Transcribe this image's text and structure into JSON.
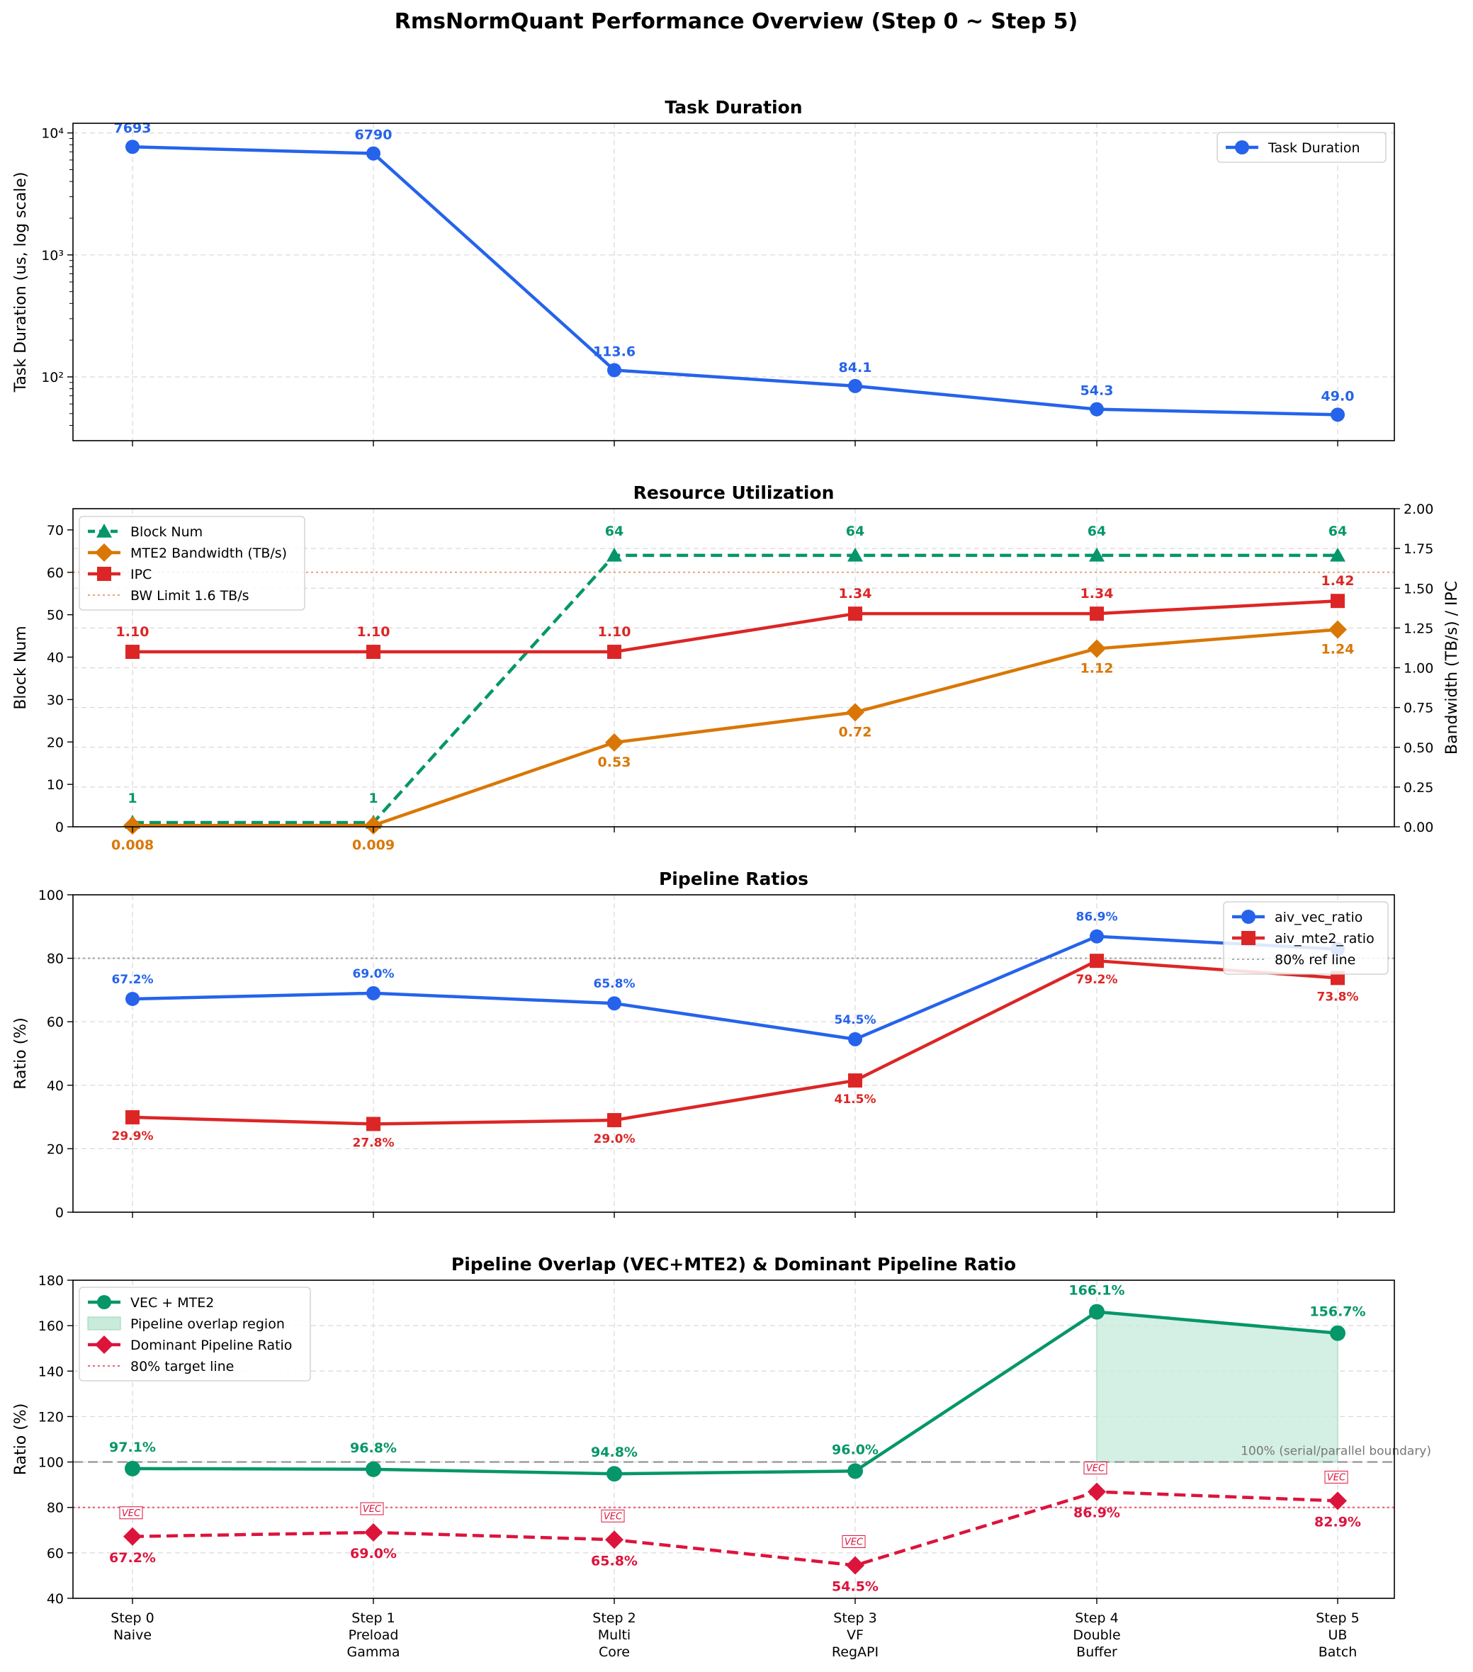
{
  "figure_title": "RmsNormQuant Performance Overview (Step 0 ~ Step 5)",
  "colors": {
    "blue": "#2563eb",
    "orange": "#d97706",
    "green": "#059669",
    "red": "#dc2626",
    "crimson": "#dc143c",
    "grid": "#d9d9d9",
    "overlap_fill": "#c9ebdc"
  },
  "chart_data": [
    {
      "id": "task_duration",
      "type": "line",
      "title": "Task Duration",
      "ylabel": "Task Duration (us, log scale)",
      "yscale": "log",
      "ylim": [
        30,
        12000
      ],
      "yticks": [
        {
          "v": 100,
          "label": "10²"
        },
        {
          "v": 1000,
          "label": "10³"
        },
        {
          "v": 10000,
          "label": "10⁴"
        }
      ],
      "grid": true,
      "legend": "upper right",
      "categories": [
        "Step 0",
        "Step 1",
        "Step 2",
        "Step 3",
        "Step 4",
        "Step 5"
      ],
      "series": [
        {
          "name": "Task Duration",
          "marker": "circle",
          "color": "#2563eb",
          "style": "solid",
          "values": [
            7693,
            6790,
            113.6,
            84.1,
            54.3,
            49.0
          ],
          "labels": [
            "7693",
            "6790",
            "113.6",
            "84.1",
            "54.3",
            "49.0"
          ]
        }
      ]
    },
    {
      "id": "resource_utilization",
      "type": "line",
      "title": "Resource Utilization",
      "ylabel": "Block Num",
      "ylim": [
        0,
        75
      ],
      "yticks": [
        0,
        10,
        20,
        30,
        40,
        50,
        60,
        70
      ],
      "y2label": "Bandwidth (TB/s) / IPC",
      "y2lim": [
        0,
        2.0
      ],
      "y2ticks": [
        "0.00",
        "0.25",
        "0.50",
        "0.75",
        "1.00",
        "1.25",
        "1.50",
        "1.75",
        "2.00"
      ],
      "grid": true,
      "legend": "upper left",
      "categories": [
        "Step 0",
        "Step 1",
        "Step 2",
        "Step 3",
        "Step 4",
        "Step 5"
      ],
      "series": [
        {
          "name": "Block Num",
          "axis": "left",
          "marker": "triangle",
          "color": "#059669",
          "style": "dashed",
          "values": [
            1,
            1,
            64,
            64,
            64,
            64
          ],
          "labels": [
            "1",
            "1",
            "64",
            "64",
            "64",
            "64"
          ]
        },
        {
          "name": "MTE2 Bandwidth (TB/s)",
          "axis": "right",
          "marker": "diamond",
          "color": "#d97706",
          "style": "solid",
          "values": [
            0.008,
            0.009,
            0.53,
            0.72,
            1.12,
            1.24
          ],
          "labels": [
            "0.008",
            "0.009",
            "0.53",
            "0.72",
            "1.12",
            "1.24"
          ]
        },
        {
          "name": "IPC",
          "axis": "right",
          "marker": "square",
          "color": "#dc2626",
          "style": "solid",
          "values": [
            1.1,
            1.1,
            1.1,
            1.34,
            1.34,
            1.42
          ],
          "labels": [
            "1.10",
            "1.10",
            "1.10",
            "1.34",
            "1.34",
            "1.42"
          ]
        }
      ],
      "reference_line": {
        "name": "BW Limit 1.6 TB/s",
        "axis": "right",
        "value": 1.6,
        "color": "#e8a27a"
      }
    },
    {
      "id": "pipeline_ratios",
      "type": "line",
      "title": "Pipeline Ratios",
      "ylabel": "Ratio (%)",
      "ylim": [
        0,
        100
      ],
      "yticks": [
        0,
        20,
        40,
        60,
        80,
        100
      ],
      "grid": true,
      "legend": "upper right",
      "categories": [
        "Step 0",
        "Step 1",
        "Step 2",
        "Step 3",
        "Step 4",
        "Step 5"
      ],
      "series": [
        {
          "name": "aiv_vec_ratio",
          "marker": "circle",
          "color": "#2563eb",
          "style": "solid",
          "values": [
            67.2,
            69.0,
            65.8,
            54.5,
            86.9,
            82.9
          ],
          "labels": [
            "67.2%",
            "69.0%",
            "65.8%",
            "54.5%",
            "86.9%",
            ""
          ]
        },
        {
          "name": "aiv_mte2_ratio",
          "marker": "square",
          "color": "#dc2626",
          "style": "solid",
          "values": [
            29.9,
            27.8,
            29.0,
            41.5,
            79.2,
            73.8
          ],
          "labels": [
            "29.9%",
            "27.8%",
            "29.0%",
            "41.5%",
            "79.2%",
            "73.8%"
          ]
        }
      ],
      "reference_line": {
        "name": "80% ref line",
        "value": 80,
        "color": "#aaaaaa"
      }
    },
    {
      "id": "pipeline_overlap",
      "type": "line",
      "title": "Pipeline Overlap (VEC+MTE2) & Dominant Pipeline Ratio",
      "ylabel": "Ratio (%)",
      "ylim": [
        40,
        180
      ],
      "yticks": [
        40,
        60,
        80,
        100,
        120,
        140,
        160,
        180
      ],
      "grid": true,
      "legend": "upper left",
      "categories": [
        "Step 0",
        "Step 1",
        "Step 2",
        "Step 3",
        "Step 4",
        "Step 5"
      ],
      "category_labels": [
        [
          "Step 0",
          "Naive"
        ],
        [
          "Step 1",
          "Preload",
          "Gamma"
        ],
        [
          "Step 2",
          "Multi",
          "Core"
        ],
        [
          "Step 3",
          "VF",
          "RegAPI"
        ],
        [
          "Step 4",
          "Double",
          "Buffer"
        ],
        [
          "Step 5",
          "UB",
          "Batch"
        ]
      ],
      "series": [
        {
          "name": "VEC + MTE2",
          "marker": "circle",
          "color": "#059669",
          "style": "solid",
          "values": [
            97.1,
            96.8,
            94.8,
            96.0,
            166.1,
            156.7
          ],
          "labels": [
            "97.1%",
            "96.8%",
            "94.8%",
            "96.0%",
            "166.1%",
            "156.7%"
          ]
        },
        {
          "name": "Dominant Pipeline Ratio",
          "marker": "diamond",
          "color": "#dc143c",
          "style": "dashed",
          "values": [
            67.2,
            69.0,
            65.8,
            54.5,
            86.9,
            82.9
          ],
          "labels": [
            "67.2%",
            "69.0%",
            "65.8%",
            "54.5%",
            "86.9%",
            "82.9%"
          ],
          "tags": [
            "VEC",
            "VEC",
            "VEC",
            "VEC",
            "VEC",
            "VEC"
          ]
        }
      ],
      "overlap_region": {
        "name": "Pipeline overlap region",
        "from_value": 100,
        "steps": [
          4,
          5
        ]
      },
      "reference_lines": [
        {
          "name": "100% (serial/parallel boundary)",
          "value": 100,
          "color": "#999999"
        },
        {
          "name": "80% target line",
          "value": 80,
          "color": "#e8637a"
        }
      ]
    }
  ]
}
